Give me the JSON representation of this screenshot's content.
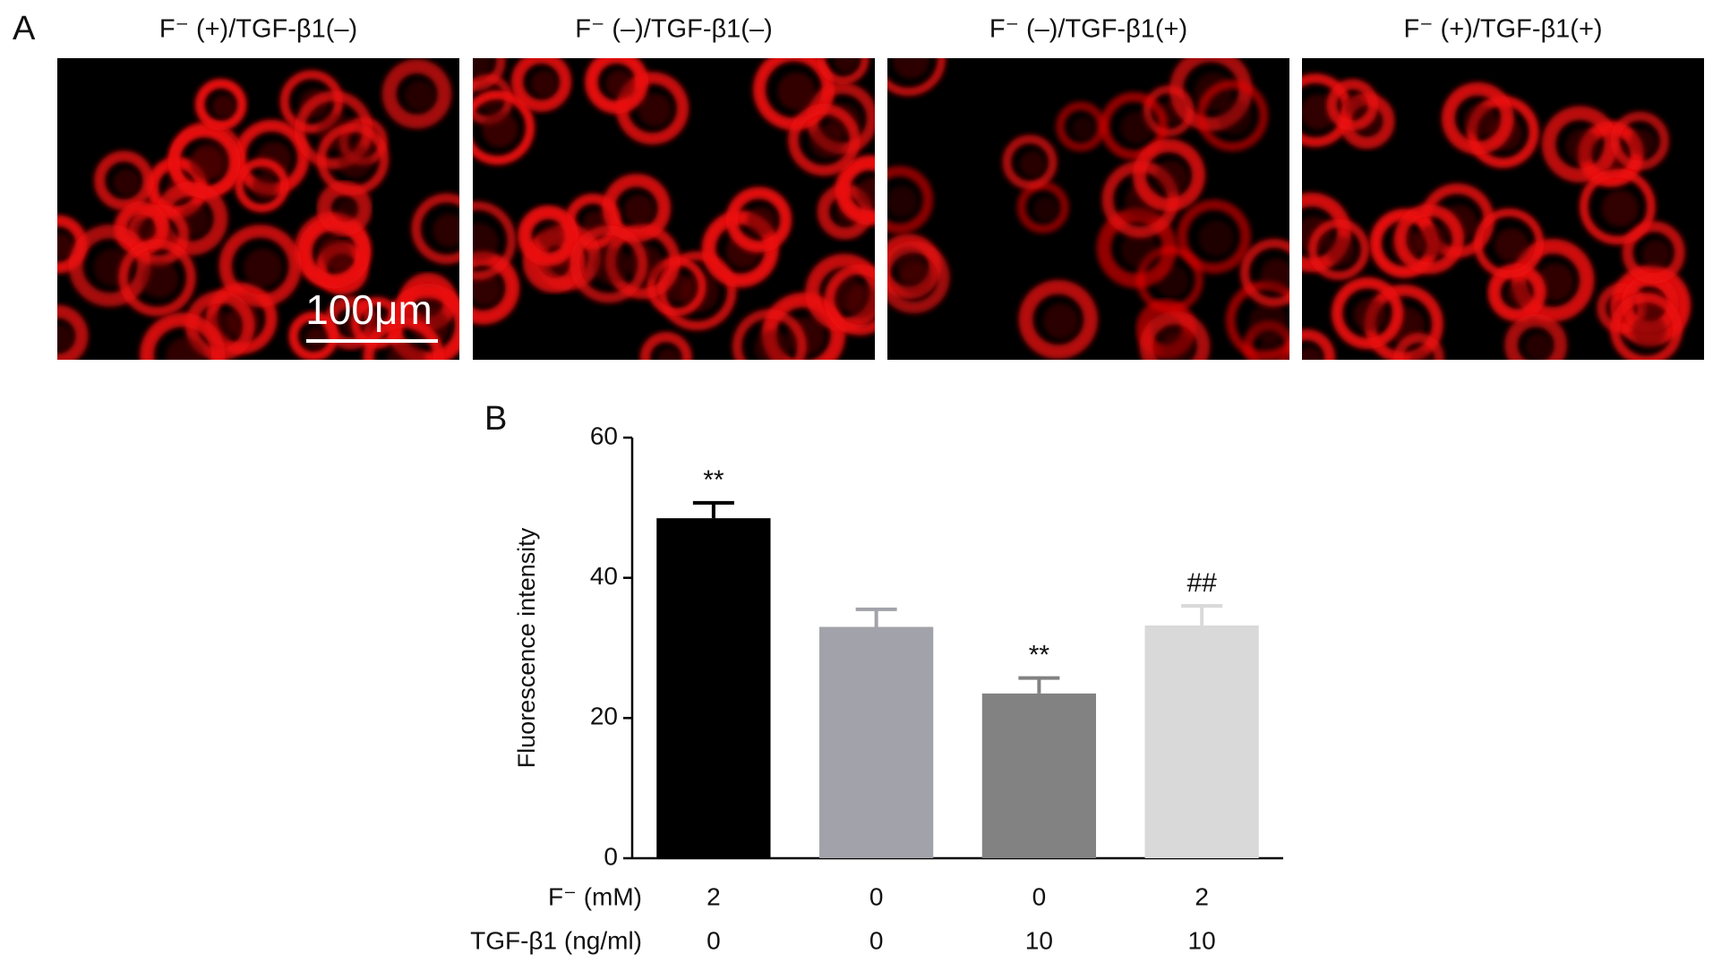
{
  "panel_a": {
    "label": "A",
    "images": [
      {
        "title": "F⁻ (+)/TGF-β1(–)"
      },
      {
        "title": "F⁻ (–)/TGF-β1(–)"
      },
      {
        "title": "F⁻ (–)/TGF-β1(+)"
      },
      {
        "title": "F⁻ (+)/TGF-β1(+)"
      }
    ],
    "scale_bar": "100μm"
  },
  "chart_data": {
    "type": "bar",
    "panel_label": "B",
    "y_label": "Fluorescence intensity",
    "values": [
      48.5,
      33,
      23.5,
      33.2
    ],
    "errors": [
      2.2,
      2.5,
      2.2,
      2.8
    ],
    "colors": [
      "#000000",
      "#a2a2aa",
      "#828282",
      "#d9d9d9"
    ],
    "annotations": [
      "**",
      null,
      "**",
      "##"
    ],
    "ylim": [
      0,
      60
    ],
    "yticks": [
      0,
      20,
      40,
      60
    ],
    "condition_rows": [
      {
        "label": "F⁻ (mM)",
        "values": [
          2,
          0,
          0,
          2
        ]
      },
      {
        "label": "TGF-β1 (ng/ml)",
        "values": [
          0,
          0,
          10,
          10
        ]
      }
    ]
  }
}
